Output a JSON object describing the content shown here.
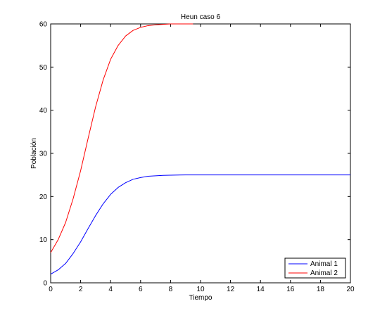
{
  "chart_data": {
    "type": "line",
    "title": "Heun caso 6",
    "xlabel": "Tiempo",
    "ylabel": "Población",
    "xlim": [
      0,
      20
    ],
    "ylim": [
      0,
      60
    ],
    "xticks": [
      "0",
      "2",
      "4",
      "6",
      "8",
      "10",
      "12",
      "14",
      "16",
      "18",
      "20"
    ],
    "yticks": [
      "0",
      "10",
      "20",
      "30",
      "40",
      "50",
      "60"
    ],
    "grid": false,
    "legend_position": "bottom-right",
    "series": [
      {
        "name": "Animal 1",
        "color": "#0000ff",
        "x": [
          0,
          0.5,
          1,
          1.5,
          2,
          2.5,
          3,
          3.5,
          4,
          4.5,
          5,
          5.5,
          6,
          6.5,
          7,
          7.5,
          8,
          9,
          10,
          12,
          14,
          16,
          18,
          20
        ],
        "y": [
          2.0,
          3.0,
          4.5,
          6.8,
          9.5,
          12.6,
          15.6,
          18.3,
          20.5,
          22.1,
          23.2,
          24.0,
          24.4,
          24.7,
          24.8,
          24.9,
          24.95,
          25.0,
          25.0,
          25.0,
          25.0,
          25.0,
          25.0,
          25.0
        ]
      },
      {
        "name": "Animal 2",
        "color": "#ff0000",
        "x": [
          0,
          0.5,
          1,
          1.5,
          2,
          2.5,
          3,
          3.5,
          4,
          4.5,
          5,
          5.5,
          6,
          6.5,
          7,
          7.5,
          8,
          8.5,
          9,
          9.5
        ],
        "y": [
          7.0,
          10.0,
          14.0,
          19.5,
          26.0,
          33.5,
          40.8,
          47.0,
          51.8,
          55.0,
          57.2,
          58.5,
          59.2,
          59.6,
          59.8,
          59.9,
          60.0,
          60.0,
          60.0,
          60.0
        ]
      }
    ]
  }
}
